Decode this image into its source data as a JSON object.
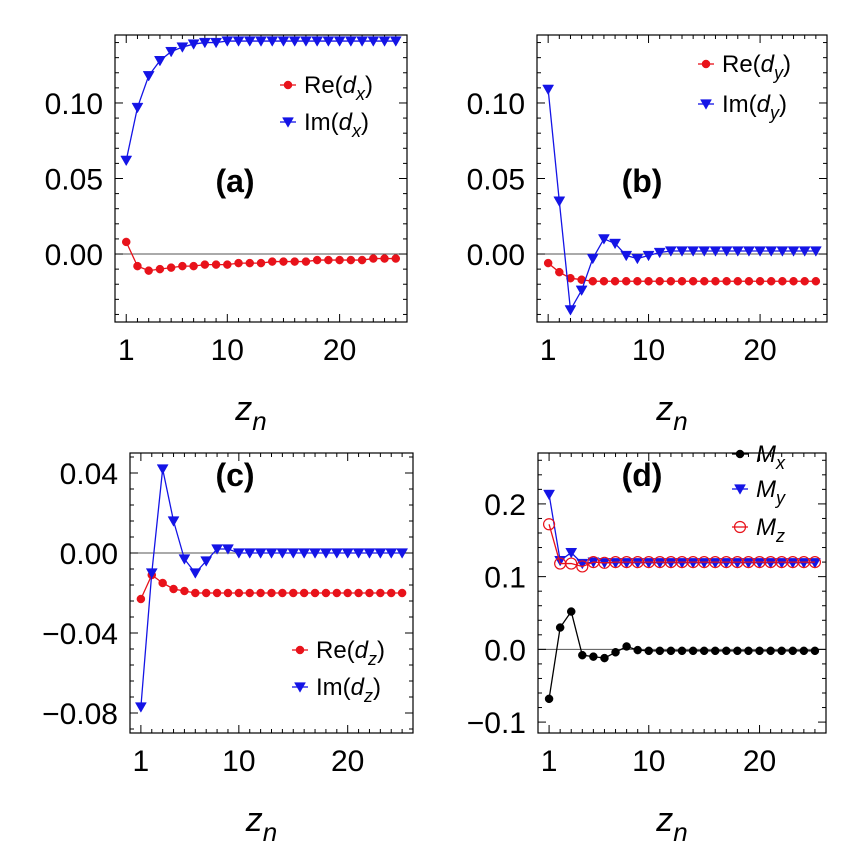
{
  "chart_data": [
    {
      "type": "line",
      "panel_label": "(a)",
      "xlabel": "z",
      "xlabel_sub": "n",
      "xlim": [
        0,
        26
      ],
      "ylim": [
        -0.045,
        0.145
      ],
      "xticks": [
        1,
        10,
        20
      ],
      "yticks": [
        "0.10",
        "0.05",
        "0.00"
      ],
      "ytick_values": [
        0.1,
        0.05,
        0.0
      ],
      "legend_position": "top-right",
      "series": [
        {
          "name": "Re(d_x)",
          "label_main": "Re(",
          "label_var": "d",
          "label_sub": "x",
          "label_close": ")",
          "color": "#e8121a",
          "marker": "circle",
          "x": [
            1,
            2,
            3,
            4,
            5,
            6,
            7,
            8,
            9,
            10,
            11,
            12,
            13,
            14,
            15,
            16,
            17,
            18,
            19,
            20,
            21,
            22,
            23,
            24,
            25
          ],
          "values": [
            0.008,
            -0.008,
            -0.011,
            -0.01,
            -0.009,
            -0.008,
            -0.008,
            -0.007,
            -0.007,
            -0.007,
            -0.006,
            -0.006,
            -0.006,
            -0.005,
            -0.005,
            -0.005,
            -0.005,
            -0.004,
            -0.004,
            -0.004,
            -0.004,
            -0.004,
            -0.003,
            -0.003,
            -0.003
          ]
        },
        {
          "name": "Im(d_x)",
          "label_main": "Im(",
          "label_var": "d",
          "label_sub": "x",
          "label_close": ")",
          "color": "#1414e6",
          "marker": "triangle-down",
          "x": [
            1,
            2,
            3,
            4,
            5,
            6,
            7,
            8,
            9,
            10,
            11,
            12,
            13,
            14,
            15,
            16,
            17,
            18,
            19,
            20,
            21,
            22,
            23,
            24,
            25
          ],
          "values": [
            0.062,
            0.097,
            0.118,
            0.128,
            0.134,
            0.137,
            0.139,
            0.14,
            0.14,
            0.141,
            0.141,
            0.141,
            0.141,
            0.141,
            0.141,
            0.141,
            0.141,
            0.141,
            0.141,
            0.141,
            0.141,
            0.141,
            0.141,
            0.141,
            0.141
          ]
        }
      ]
    },
    {
      "type": "line",
      "panel_label": "(b)",
      "xlabel": "z",
      "xlabel_sub": "n",
      "xlim": [
        0,
        26
      ],
      "ylim": [
        -0.045,
        0.145
      ],
      "xticks": [
        1,
        10,
        20
      ],
      "yticks": [
        "0.10",
        "0.05",
        "0.00"
      ],
      "ytick_values": [
        0.1,
        0.05,
        0.0
      ],
      "legend_position": "top-right",
      "series": [
        {
          "name": "Re(d_y)",
          "label_main": "Re(",
          "label_var": "d",
          "label_sub": "y",
          "label_close": ")",
          "color": "#e8121a",
          "marker": "circle",
          "x": [
            1,
            2,
            3,
            4,
            5,
            6,
            7,
            8,
            9,
            10,
            11,
            12,
            13,
            14,
            15,
            16,
            17,
            18,
            19,
            20,
            21,
            22,
            23,
            24,
            25
          ],
          "values": [
            -0.006,
            -0.012,
            -0.016,
            -0.017,
            -0.018,
            -0.018,
            -0.018,
            -0.018,
            -0.018,
            -0.018,
            -0.018,
            -0.018,
            -0.018,
            -0.018,
            -0.018,
            -0.018,
            -0.018,
            -0.018,
            -0.018,
            -0.018,
            -0.018,
            -0.018,
            -0.018,
            -0.018,
            -0.018
          ]
        },
        {
          "name": "Im(d_y)",
          "label_main": "Im(",
          "label_var": "d",
          "label_sub": "y",
          "label_close": ")",
          "color": "#1414e6",
          "marker": "triangle-down",
          "x": [
            1,
            2,
            3,
            4,
            5,
            6,
            7,
            8,
            9,
            10,
            11,
            12,
            13,
            14,
            15,
            16,
            17,
            18,
            19,
            20,
            21,
            22,
            23,
            24,
            25
          ],
          "values": [
            0.109,
            0.035,
            -0.037,
            -0.024,
            -0.003,
            0.01,
            0.007,
            -0.001,
            -0.003,
            -0.001,
            0.001,
            0.002,
            0.002,
            0.002,
            0.002,
            0.002,
            0.002,
            0.002,
            0.002,
            0.002,
            0.002,
            0.002,
            0.002,
            0.002,
            0.002
          ]
        }
      ]
    },
    {
      "type": "line",
      "panel_label": "(c)",
      "xlabel": "z",
      "xlabel_sub": "n",
      "xlim": [
        0,
        26
      ],
      "ylim": [
        -0.09,
        0.05
      ],
      "xticks": [
        1,
        10,
        20
      ],
      "yticks": [
        "0.04",
        "0.00",
        "−0.04",
        "−0.08"
      ],
      "ytick_values": [
        0.04,
        0.0,
        -0.04,
        -0.08
      ],
      "legend_position": "bottom-right",
      "series": [
        {
          "name": "Re(d_z)",
          "label_main": "Re(",
          "label_var": "d",
          "label_sub": "z",
          "label_close": ")",
          "color": "#e8121a",
          "marker": "circle",
          "x": [
            1,
            2,
            3,
            4,
            5,
            6,
            7,
            8,
            9,
            10,
            11,
            12,
            13,
            14,
            15,
            16,
            17,
            18,
            19,
            20,
            21,
            22,
            23,
            24,
            25
          ],
          "values": [
            -0.023,
            -0.011,
            -0.015,
            -0.018,
            -0.019,
            -0.02,
            -0.02,
            -0.02,
            -0.02,
            -0.02,
            -0.02,
            -0.02,
            -0.02,
            -0.02,
            -0.02,
            -0.02,
            -0.02,
            -0.02,
            -0.02,
            -0.02,
            -0.02,
            -0.02,
            -0.02,
            -0.02,
            -0.02
          ]
        },
        {
          "name": "Im(d_z)",
          "label_main": "Im(",
          "label_var": "d",
          "label_sub": "z",
          "label_close": ")",
          "color": "#1414e6",
          "marker": "triangle-down",
          "x": [
            1,
            2,
            3,
            4,
            5,
            6,
            7,
            8,
            9,
            10,
            11,
            12,
            13,
            14,
            15,
            16,
            17,
            18,
            19,
            20,
            21,
            22,
            23,
            24,
            25
          ],
          "values": [
            -0.077,
            -0.01,
            0.042,
            0.016,
            -0.003,
            -0.01,
            -0.004,
            0.002,
            0.002,
            0.0,
            0.0,
            0.0,
            0.0,
            0.0,
            0.0,
            0.0,
            0.0,
            0.0,
            0.0,
            0.0,
            0.0,
            0.0,
            0.0,
            0.0,
            0.0
          ]
        }
      ]
    },
    {
      "type": "line",
      "panel_label": "(d)",
      "xlabel": "z",
      "xlabel_sub": "n",
      "xlim": [
        0,
        26
      ],
      "ylim": [
        -0.115,
        0.27
      ],
      "xticks": [
        1,
        10,
        20
      ],
      "yticks": [
        "0.2",
        "0.1",
        "0.0",
        "−0.1"
      ],
      "ytick_values": [
        0.2,
        0.1,
        0.0,
        -0.1
      ],
      "legend_position": "top-right",
      "series": [
        {
          "name": "M_x",
          "label_main": "",
          "label_var": "M",
          "label_sub": "x",
          "label_close": "",
          "color": "#000000",
          "marker": "circle",
          "x": [
            1,
            2,
            3,
            4,
            5,
            6,
            7,
            8,
            9,
            10,
            11,
            12,
            13,
            14,
            15,
            16,
            17,
            18,
            19,
            20,
            21,
            22,
            23,
            24,
            25
          ],
          "values": [
            -0.068,
            0.03,
            0.052,
            -0.008,
            -0.01,
            -0.012,
            -0.004,
            0.004,
            -0.001,
            -0.002,
            -0.002,
            -0.002,
            -0.002,
            -0.002,
            -0.002,
            -0.002,
            -0.002,
            -0.002,
            -0.002,
            -0.002,
            -0.002,
            -0.002,
            -0.002,
            -0.002,
            -0.002
          ]
        },
        {
          "name": "M_y",
          "label_main": "",
          "label_var": "M",
          "label_sub": "y",
          "label_close": "",
          "color": "#1414e6",
          "marker": "triangle-down",
          "x": [
            1,
            2,
            3,
            4,
            5,
            6,
            7,
            8,
            9,
            10,
            11,
            12,
            13,
            14,
            15,
            16,
            17,
            18,
            19,
            20,
            21,
            22,
            23,
            24,
            25
          ],
          "values": [
            0.213,
            0.122,
            0.133,
            0.118,
            0.12,
            0.119,
            0.119,
            0.119,
            0.119,
            0.119,
            0.119,
            0.119,
            0.119,
            0.119,
            0.119,
            0.119,
            0.119,
            0.119,
            0.119,
            0.119,
            0.119,
            0.119,
            0.119,
            0.119,
            0.119
          ]
        },
        {
          "name": "M_z",
          "label_main": "",
          "label_var": "M",
          "label_sub": "z",
          "label_close": "",
          "color": "#e8121a",
          "marker": "open-circle",
          "x": [
            1,
            2,
            3,
            4,
            5,
            6,
            7,
            8,
            9,
            10,
            11,
            12,
            13,
            14,
            15,
            16,
            17,
            18,
            19,
            20,
            21,
            22,
            23,
            24,
            25
          ],
          "values": [
            0.172,
            0.118,
            0.118,
            0.114,
            0.12,
            0.119,
            0.12,
            0.12,
            0.12,
            0.12,
            0.12,
            0.12,
            0.12,
            0.12,
            0.12,
            0.12,
            0.12,
            0.12,
            0.12,
            0.12,
            0.12,
            0.12,
            0.12,
            0.12,
            0.12
          ]
        }
      ]
    }
  ]
}
